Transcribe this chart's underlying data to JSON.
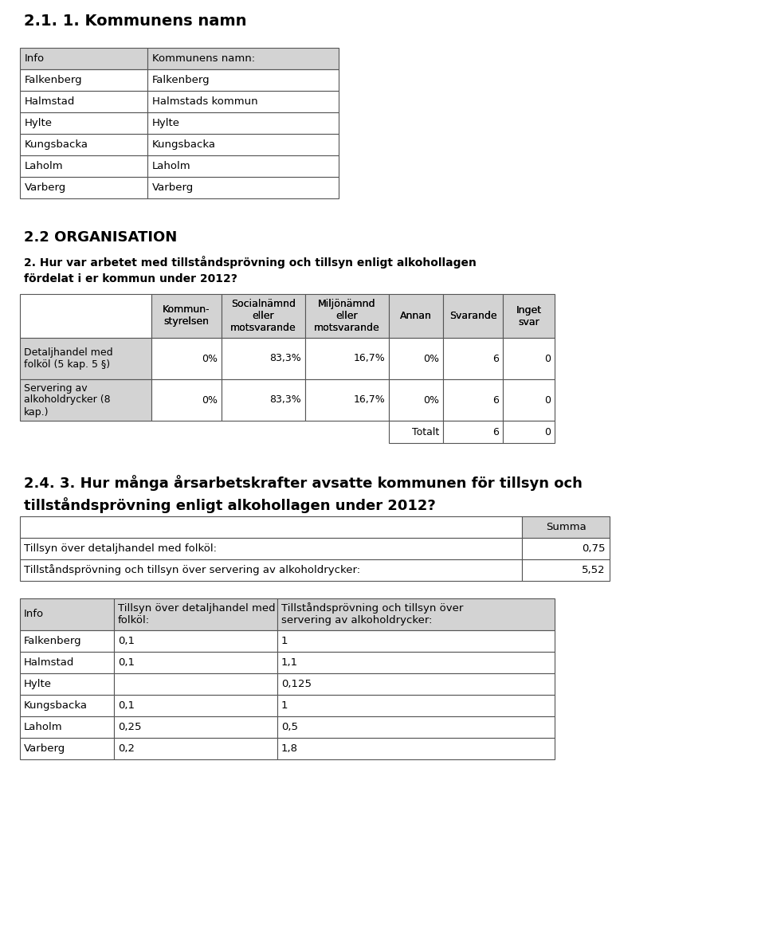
{
  "title1": "2.1. 1. Kommunens namn",
  "table1_header": [
    "Info",
    "Kommunens namn:"
  ],
  "table1_rows": [
    [
      "Falkenberg",
      "Falkenberg"
    ],
    [
      "Halmstad",
      "Halmstads kommun"
    ],
    [
      "Hylte",
      "Hylte"
    ],
    [
      "Kungsbacka",
      "Kungsbacka"
    ],
    [
      "Laholm",
      "Laholm"
    ],
    [
      "Varberg",
      "Varberg"
    ]
  ],
  "section2_title": "2.2 ORGANISATION",
  "question2": "2. Hur var arbetet med tillståndsprövning och tillsyn enligt alkohollagen\nfördelat i er kommun under 2012?",
  "table2_headers": [
    "Kommun-\nstyrelsen",
    "Socialnämnd\neller\nmotsvarande",
    "Miljönämnd\neller\nmotsvarande",
    "Annan",
    "Svarande",
    "Inget\nsvar"
  ],
  "table2_rows": [
    [
      "Detaljhandel med\nfolköl (5 kap. 5 §)",
      "0%",
      "83,3%",
      "16,7%",
      "0%",
      "6",
      "0"
    ],
    [
      "Servering av\nalkoholdrycker (8\nkap.)",
      "0%",
      "83,3%",
      "16,7%",
      "0%",
      "6",
      "0"
    ]
  ],
  "table2_totalt": [
    "",
    "",
    "",
    "",
    "Totalt",
    "6",
    "0"
  ],
  "section3_title": "2.4. 3. Hur många årsarbetskrafter avsatte kommunen för tillsyn och\ntillståndsprövning enligt alkohollagen under 2012?",
  "table3_header": [
    "",
    "Summa"
  ],
  "table3_rows": [
    [
      "Tillsyn över detaljhandel med folköl:",
      "0,75"
    ],
    [
      "Tillståndsprövning och tillsyn över servering av alkoholdrycker:",
      "5,52"
    ]
  ],
  "table4_headers": [
    "Info",
    "Tillsyn över detaljhandel med\nfolköl:",
    "Tillståndsprövning och tillsyn över\nservering av alkoholdrycker:"
  ],
  "table4_rows": [
    [
      "Falkenberg",
      "0,1",
      "1"
    ],
    [
      "Halmstad",
      "0,1",
      "1,1"
    ],
    [
      "Hylte",
      "",
      "0,125"
    ],
    [
      "Kungsbacka",
      "0,1",
      "1"
    ],
    [
      "Laholm",
      "0,25",
      "0,5"
    ],
    [
      "Varberg",
      "0,2",
      "1,8"
    ]
  ],
  "bg_color": "#ffffff",
  "header_bg": "#d3d3d3",
  "border_color": "#555555",
  "text_color": "#000000",
  "font_size": 9.5,
  "title_font_size": 14,
  "section_font_size": 13
}
